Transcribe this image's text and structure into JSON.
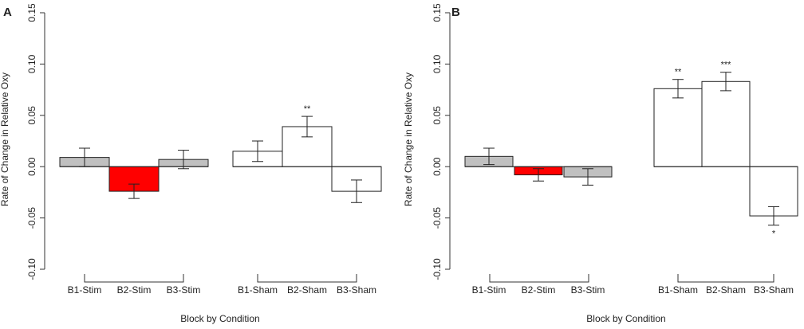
{
  "chart_data": [
    {
      "panel_label": "A",
      "type": "bar",
      "xlabel": "Block by Condition",
      "ylabel": "Rate of Change in Relative Oxy",
      "ylim": [
        -0.1,
        0.15
      ],
      "yticks": [
        "-0.10",
        "-0.05",
        "0.00",
        "0.05",
        "0.10",
        "0.15"
      ],
      "ytick_values": [
        -0.1,
        -0.05,
        0.0,
        0.05,
        0.1,
        0.15
      ],
      "groups": [
        {
          "name": "Stim",
          "categories": [
            "B1-Stim",
            "B2-Stim",
            "B3-Stim"
          ],
          "values": [
            0.009,
            -0.024,
            0.007
          ],
          "errors": [
            0.009,
            0.007,
            0.009
          ],
          "colors": [
            "#c0c0c0",
            "#ff0000",
            "#c0c0c0"
          ],
          "significance": [
            "",
            "",
            ""
          ]
        },
        {
          "name": "Sham",
          "categories": [
            "B1-Sham",
            "B2-Sham",
            "B3-Sham"
          ],
          "values": [
            0.015,
            0.039,
            -0.024
          ],
          "errors": [
            0.01,
            0.01,
            0.011
          ],
          "colors": [
            "#ffffff",
            "#ffffff",
            "#ffffff"
          ],
          "significance": [
            "",
            "**",
            ""
          ]
        }
      ]
    },
    {
      "panel_label": "B",
      "type": "bar",
      "xlabel": "Block by Condition",
      "ylabel": "Rate of Change in Relative Oxy",
      "ylim": [
        -0.1,
        0.15
      ],
      "yticks": [
        "-0.10",
        "-0.05",
        "0.00",
        "0.05",
        "0.10",
        "0.15"
      ],
      "ytick_values": [
        -0.1,
        -0.05,
        0.0,
        0.05,
        0.1,
        0.15
      ],
      "groups": [
        {
          "name": "Stim",
          "categories": [
            "B1-Stim",
            "B2-Stim",
            "B3-Stim"
          ],
          "values": [
            0.01,
            -0.008,
            -0.01
          ],
          "errors": [
            0.008,
            0.006,
            0.008
          ],
          "colors": [
            "#c0c0c0",
            "#ff0000",
            "#c0c0c0"
          ],
          "significance": [
            "",
            "",
            ""
          ]
        },
        {
          "name": "Sham",
          "categories": [
            "B1-Sham",
            "B2-Sham",
            "B3-Sham"
          ],
          "values": [
            0.076,
            0.083,
            -0.048
          ],
          "errors": [
            0.009,
            0.009,
            0.009
          ],
          "colors": [
            "#ffffff",
            "#ffffff",
            "#ffffff"
          ],
          "significance": [
            "**",
            "***",
            "*"
          ]
        }
      ]
    }
  ]
}
